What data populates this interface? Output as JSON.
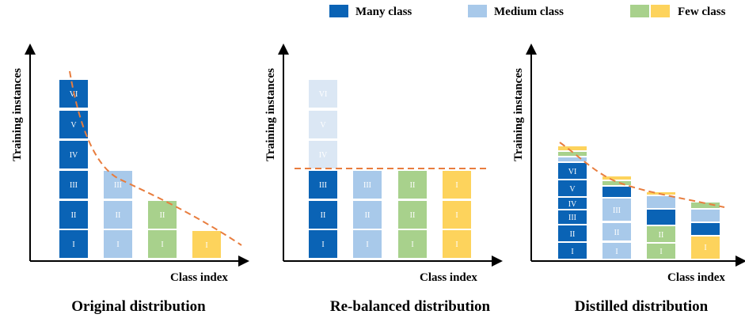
{
  "legend": {
    "items": [
      {
        "label": "Many class",
        "colors": [
          "#0a63b5"
        ]
      },
      {
        "label": "Medium class",
        "colors": [
          "#a8c9ea"
        ]
      },
      {
        "label": "Few class",
        "colors": [
          "#a8d18c",
          "#fdd35c"
        ]
      }
    ]
  },
  "colors": {
    "many": "#0a63b5",
    "medium": "#a8c9ea",
    "few_green": "#a8d18c",
    "few_yellow": "#fdd35c",
    "many_faded": "#dbe7f4",
    "trend": "#e87d3e"
  },
  "panels": [
    {
      "ylabel": "Training instances",
      "xlabel": "Class index",
      "caption": "Original distribution",
      "bars": [
        {
          "color": "many",
          "segments": [
            "I",
            "II",
            "III",
            "IV",
            "V",
            "VI"
          ]
        },
        {
          "color": "medium",
          "segments": [
            "I",
            "II",
            "III"
          ]
        },
        {
          "color": "few_green",
          "segments": [
            "I",
            "II"
          ]
        },
        {
          "color": "few_yellow",
          "segments": [
            "I"
          ]
        }
      ]
    },
    {
      "ylabel": "Training instances",
      "xlabel": "Class index",
      "caption": "Re-balanced distribution",
      "bars": [
        {
          "color": "many",
          "segments": [
            "I",
            "II",
            "III"
          ],
          "faded": [
            "IV",
            "V",
            "VI"
          ]
        },
        {
          "color": "medium",
          "segments": [
            "I",
            "II",
            "III"
          ]
        },
        {
          "color": "few_green",
          "segments": [
            "I",
            "II",
            "II"
          ]
        },
        {
          "color": "few_yellow",
          "segments": [
            "I",
            "I",
            "I"
          ]
        }
      ]
    },
    {
      "ylabel": "Training instances",
      "xlabel": "Class index",
      "caption": "Distilled distribution",
      "bars": [
        {
          "label_color": "many",
          "segments": [
            "I",
            "II",
            "III",
            "IV",
            "V",
            "VI"
          ]
        },
        {
          "label_color": "medium",
          "segments": [
            "I",
            "II",
            "III"
          ]
        },
        {
          "label_color": "few_green",
          "segments": [
            "I",
            "II"
          ]
        },
        {
          "label_color": "few_yellow",
          "segments": [
            "I"
          ]
        }
      ]
    }
  ]
}
